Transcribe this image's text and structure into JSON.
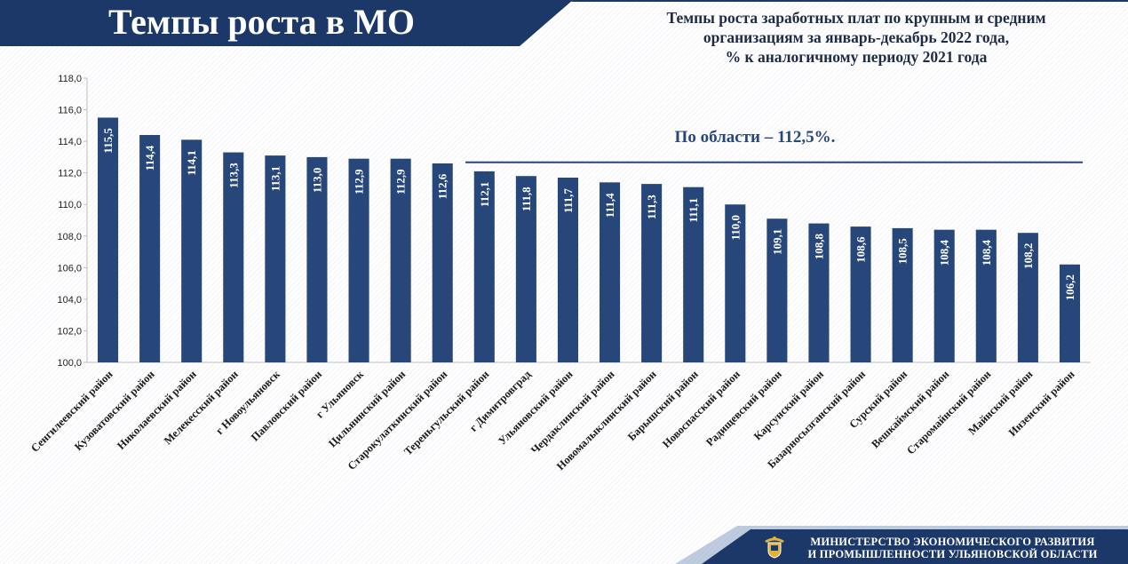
{
  "slide": {
    "title": "Темпы роста в МО",
    "ministry_line1": "МИНИСТЕРСТВО ЭКОНОМИЧЕСКОГО РАЗВИТИЯ",
    "ministry_line2": "И ПРОМЫШЛЕННОСТИ УЛЬЯНОВСКОЙ ОБЛАСТИ"
  },
  "colors": {
    "bar": "#27467a",
    "banner": "#1b3868",
    "axis": "#bfbfbf",
    "reference_line": "#27467a",
    "text": "#1f2a44"
  },
  "icons": {
    "emblem": "coat-of-arms-icon"
  },
  "chart_data": {
    "type": "bar",
    "title_lines": [
      "Темпы роста заработных плат по крупным и средним",
      "организациям за январь-декабрь 2022 года,",
      "% к аналогичному периоду 2021 года"
    ],
    "categories": [
      "Сенгилеевский район",
      "Кузоватовский район",
      "Николаевский район",
      "Мелекесский район",
      "г Новоульяновск",
      "Павловский район",
      "г Ульяновск",
      "Цильнинский район",
      "Старокулаткинский район",
      "Тереньгульский район",
      "г Димитровград",
      "Ульяновский район",
      "Чердаклинский район",
      "Новомалыклинский район",
      "Барышский район",
      "Новоспасский район",
      "Радищевский район",
      "Карсунский район",
      "Базарносызганский район",
      "Сурский район",
      "Вешкаймский район",
      "Старомайнский район",
      "Майнский район",
      "Инзенский район"
    ],
    "values": [
      115.5,
      114.4,
      114.1,
      113.3,
      113.1,
      113.0,
      112.9,
      112.9,
      112.6,
      112.1,
      111.8,
      111.7,
      111.4,
      111.3,
      111.1,
      110.0,
      109.1,
      108.8,
      108.6,
      108.5,
      108.4,
      108.4,
      108.2,
      106.2
    ],
    "value_labels": [
      "115,5",
      "114,4",
      "114,1",
      "113,3",
      "113,1",
      "113,0",
      "112,9",
      "112,9",
      "112,6",
      "112,1",
      "111,8",
      "111,7",
      "111,4",
      "111,3",
      "111,1",
      "110,0",
      "109,1",
      "108,8",
      "108,6",
      "108,5",
      "108,4",
      "108,4",
      "108,2",
      "106,2"
    ],
    "y_ticks": [
      100,
      102,
      104,
      106,
      108,
      110,
      112,
      114,
      116,
      118
    ],
    "y_tick_labels": [
      "100,0",
      "102,0",
      "104,0",
      "106,0",
      "108,0",
      "110,0",
      "112,0",
      "114,0",
      "116,0",
      "118,0"
    ],
    "ylim": [
      100,
      118
    ],
    "xlabel": "",
    "ylabel": "",
    "reference": {
      "value": 112.5,
      "label": "По области – 112,5%."
    }
  }
}
